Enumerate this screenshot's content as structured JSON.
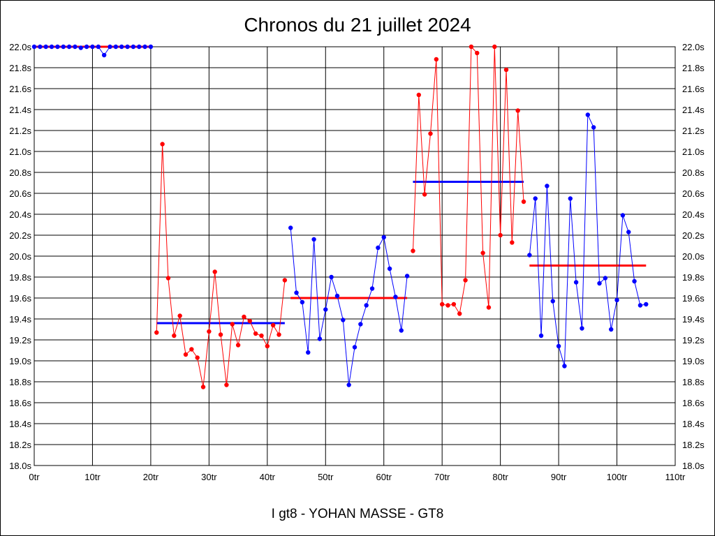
{
  "chart_data": {
    "type": "line",
    "title": "Chronos du 21 juillet 2024",
    "xlabel": "I gt8 - YOHAN MASSE - GT8",
    "ylabel": "",
    "xlim": [
      0,
      110
    ],
    "ylim": [
      18.0,
      22.0
    ],
    "grid": true,
    "x_ticks": [
      {
        "value": 0,
        "label": "0tr"
      },
      {
        "value": 10,
        "label": "10tr"
      },
      {
        "value": 20,
        "label": "20tr"
      },
      {
        "value": 30,
        "label": "30tr"
      },
      {
        "value": 40,
        "label": "40tr"
      },
      {
        "value": 50,
        "label": "50tr"
      },
      {
        "value": 60,
        "label": "60tr"
      },
      {
        "value": 70,
        "label": "70tr"
      },
      {
        "value": 80,
        "label": "80tr"
      },
      {
        "value": 90,
        "label": "90tr"
      },
      {
        "value": 100,
        "label": "100tr"
      },
      {
        "value": 110,
        "label": "110tr"
      }
    ],
    "y_ticks": [
      {
        "value": 22.0,
        "label": "22.0s"
      },
      {
        "value": 21.8,
        "label": "21.8s"
      },
      {
        "value": 21.6,
        "label": "21.6s"
      },
      {
        "value": 21.4,
        "label": "21.4s"
      },
      {
        "value": 21.2,
        "label": "21.2s"
      },
      {
        "value": 21.0,
        "label": "21.0s"
      },
      {
        "value": 20.8,
        "label": "20.8s"
      },
      {
        "value": 20.6,
        "label": "20.6s"
      },
      {
        "value": 20.4,
        "label": "20.4s"
      },
      {
        "value": 20.2,
        "label": "20.2s"
      },
      {
        "value": 20.0,
        "label": "20.0s"
      },
      {
        "value": 19.8,
        "label": "19.8s"
      },
      {
        "value": 19.6,
        "label": "19.6s"
      },
      {
        "value": 19.4,
        "label": "19.4s"
      },
      {
        "value": 19.2,
        "label": "19.2s"
      },
      {
        "value": 19.0,
        "label": "19.0s"
      },
      {
        "value": 18.8,
        "label": "18.8s"
      },
      {
        "value": 18.6,
        "label": "18.6s"
      },
      {
        "value": 18.4,
        "label": "18.4s"
      },
      {
        "value": 18.2,
        "label": "18.2s"
      },
      {
        "value": 18.0,
        "label": "18.0s"
      }
    ],
    "series": [
      {
        "color": "#0000ff",
        "x": [
          0,
          1,
          2,
          3,
          4,
          5,
          6,
          7,
          8,
          9,
          10,
          11,
          12,
          13,
          14,
          15,
          16,
          17,
          18,
          19,
          20
        ],
        "values": [
          22.0,
          22.0,
          22.0,
          22.0,
          22.0,
          22.0,
          22.0,
          22.0,
          21.99,
          22.0,
          22.0,
          22.0,
          21.92,
          22.0,
          22.0,
          22.0,
          22.0,
          22.0,
          22.0,
          22.0,
          22.0
        ],
        "avg": {
          "x_start": 0,
          "x_end": 20,
          "value": 22.0,
          "color": "#ff0000"
        }
      },
      {
        "color": "#ff0000",
        "x": [
          21,
          22,
          23,
          24,
          25,
          26,
          27,
          28,
          29,
          30,
          31,
          32,
          33,
          34,
          35,
          36,
          37,
          38,
          39,
          40,
          41,
          42,
          43
        ],
        "values": [
          19.27,
          21.07,
          19.79,
          19.24,
          19.43,
          19.06,
          19.11,
          19.03,
          18.75,
          19.28,
          19.85,
          19.25,
          18.77,
          19.35,
          19.15,
          19.42,
          19.38,
          19.26,
          19.24,
          19.14,
          19.34,
          19.25,
          19.77
        ],
        "avg": {
          "x_start": 21,
          "x_end": 43,
          "value": 19.36,
          "color": "#0000ff"
        }
      },
      {
        "color": "#0000ff",
        "x": [
          44,
          45,
          46,
          47,
          48,
          49,
          50,
          51,
          52,
          53,
          54,
          55,
          56,
          57,
          58,
          59,
          60,
          61,
          62,
          63,
          64
        ],
        "values": [
          20.27,
          19.65,
          19.56,
          19.08,
          20.16,
          19.21,
          19.49,
          19.8,
          19.62,
          19.39,
          18.77,
          19.13,
          19.35,
          19.53,
          19.69,
          20.08,
          20.18,
          19.88,
          19.61,
          19.29,
          19.81
        ],
        "avg": {
          "x_start": 44,
          "x_end": 64,
          "value": 19.6,
          "color": "#ff0000"
        }
      },
      {
        "color": "#ff0000",
        "x": [
          65,
          66,
          67,
          68,
          69,
          70,
          71,
          72,
          73,
          74,
          75,
          76,
          77,
          78,
          79,
          80,
          81,
          82,
          83,
          84
        ],
        "values": [
          20.05,
          21.54,
          20.59,
          21.17,
          21.88,
          19.54,
          19.53,
          19.54,
          19.45,
          19.77,
          22.0,
          21.94,
          20.03,
          19.51,
          22.0,
          20.2,
          21.78,
          20.13,
          21.39,
          20.52
        ],
        "avg": {
          "x_start": 65,
          "x_end": 84,
          "value": 20.71,
          "color": "#0000ff"
        }
      },
      {
        "color": "#0000ff",
        "x": [
          85,
          86,
          87,
          88,
          89,
          90,
          91,
          92,
          93,
          94,
          95,
          96,
          97,
          98,
          99,
          100,
          101,
          102,
          103,
          104,
          105
        ],
        "values": [
          20.01,
          20.55,
          19.24,
          20.67,
          19.57,
          19.14,
          18.95,
          20.55,
          19.75,
          19.31,
          21.35,
          21.23,
          19.74,
          19.79,
          19.3,
          19.58,
          20.39,
          20.23,
          19.76,
          19.53,
          19.54
        ],
        "avg": {
          "x_start": 85,
          "x_end": 105,
          "value": 19.91,
          "color": "#ff0000"
        }
      }
    ]
  }
}
